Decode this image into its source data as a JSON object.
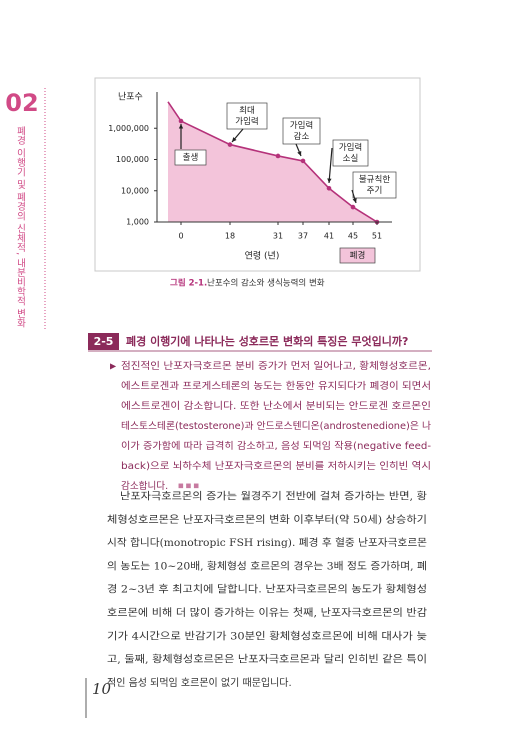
{
  "chapter": {
    "number": "02",
    "title": "폐경 이행기 및 폐경의 신체적, 내분비학적 변화"
  },
  "chart_data": {
    "type": "area",
    "y_label": "난포수",
    "x_label": "연령 (년)",
    "categories": [
      null,
      "0",
      "18",
      "31",
      "37",
      "41",
      "45",
      "51"
    ],
    "values": [
      7000000,
      1700000,
      300000,
      130000,
      90000,
      12000,
      3000,
      1000
    ],
    "ylim": [
      1000,
      10000000
    ],
    "log_y": true,
    "yticks": [
      {
        "value": 1000,
        "label": "1,000"
      },
      {
        "value": 10000,
        "label": "10,000"
      },
      {
        "value": 100000,
        "label": "100,000"
      },
      {
        "value": 1000000,
        "label": "1,000,000"
      }
    ],
    "color": "#b5327a",
    "fill": "#f3c4da",
    "annotations": [
      [
        "출생"
      ],
      [
        "최대",
        "가임력"
      ],
      [
        "가임력",
        "감소"
      ],
      [
        "가임력",
        "소실"
      ],
      [
        "불규칙한",
        "주기"
      ],
      [
        "폐경"
      ]
    ]
  },
  "figure_caption": {
    "label": "그림 2-1.",
    "text": "난포수의 감소와 생식능력의 변화"
  },
  "section": {
    "number": "2-5",
    "question": "폐경 이행기에 나타나는 성호르몬 변화의 특징은 무엇입니까?",
    "answer_lines": [
      "점진적인 난포자극호르몬 분비 증가가 먼저 일어나고, 황체형성호르몬,",
      "에스트로겐과 프로게스테론의 농도는 한동안 유지되다가 폐경이 되면서",
      "에스트로겐이 감소합니다. 또한 난소에서 분비되는 안드로겐 호르몬인",
      "테스토스테론(testosterone)과 안드로스텐디온(androstenedione)은 나",
      "이가 증가함에 따라 급격히 감소하고, 음성 되먹임 작용(negative feed-",
      "back)으로 뇌하수체 난포자극호르몬의 분비를 저하시키는 인히빈 역시",
      "감소합니다."
    ]
  },
  "body_lines": [
    "난포자극호르몬의 증가는 월경주기 전반에 걸쳐 증가하는 반면, 황",
    "체형성호르몬은 난포자극호르몬의 변화 이후부터(약 50세) 상승하기",
    "시작 합니다(monotropic FSH rising). 폐경 후 혈중 난포자극호르몬",
    "의 농도는 10~20배, 황체형성 호르몬의 경우는 3배 정도 증가하며, 폐",
    "경 2~3년 후 최고치에 달합니다. 난포자극호르몬의 농도가 황체형성",
    "호르몬에 비해 더 많이 증가하는 이유는 첫째, 난포자극호르몬의 반감",
    "기가 4시간으로 반감기가 30분인 황체형성호르몬에 비해 대사가 늦",
    "고, 둘째, 황체형성호르몬은 난포자극호르몬과 달리 인히빈 같은 특이",
    "적인 음성 되먹임 호르몬이 없기 때문입니다."
  ],
  "page_number": "10"
}
